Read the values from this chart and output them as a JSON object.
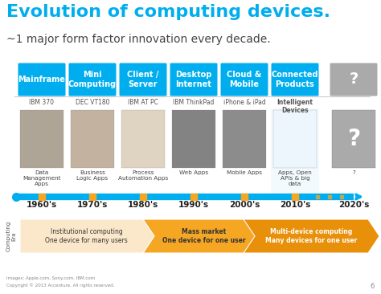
{
  "title_line1": "Evolution of computing devices.",
  "title_line2": "~1 major form factor innovation every decade.",
  "title_color": "#00AEEF",
  "bg_color": "#FFFFFF",
  "categories": [
    "Mainframe",
    "Mini\nComputing",
    "Client /\nServer",
    "Desktop\nInternet",
    "Cloud &\nMobile",
    "Connected\nProducts",
    "?"
  ],
  "cat_color": "#00AEEF",
  "cat_question_color": "#AAAAAA",
  "device_labels": [
    "IBM 370",
    "DEC VT180",
    "IBM AT PC",
    "IBM ThinkPad",
    "iPhone & iPad",
    "Intelligent\nDevices",
    ""
  ],
  "app_labels": [
    "Data\nManagement\nApps",
    "Business\nLogic Apps",
    "Process\nAutomation Apps",
    "Web Apps",
    "Mobile Apps",
    "Apps, Open\nAPIs & big\ndata",
    "?"
  ],
  "decade_labels": [
    "1960's",
    "1970's",
    "1980's",
    "1990's",
    "2000's",
    "2010's",
    "2020's"
  ],
  "timeline_color": "#00AEEF",
  "tick_color": "#F5A623",
  "era_labels": [
    "Institutional computing\nOne device for many users",
    "Mass market\nOne device for one user",
    "Multi-device computing\nMany devices for one user"
  ],
  "era_colors": [
    "#FBE8CB",
    "#F5A623",
    "#E8900A"
  ],
  "computing_era_label": "Computing\nEra",
  "footer1": "Images: Apple.com, Sony.com, IBM.com",
  "footer2": "Copyright © 2013 Accenture. All rights reserved.",
  "page_num": "6",
  "separator_color": "#CCCCCC",
  "connected_bg": "#E8F6FC"
}
